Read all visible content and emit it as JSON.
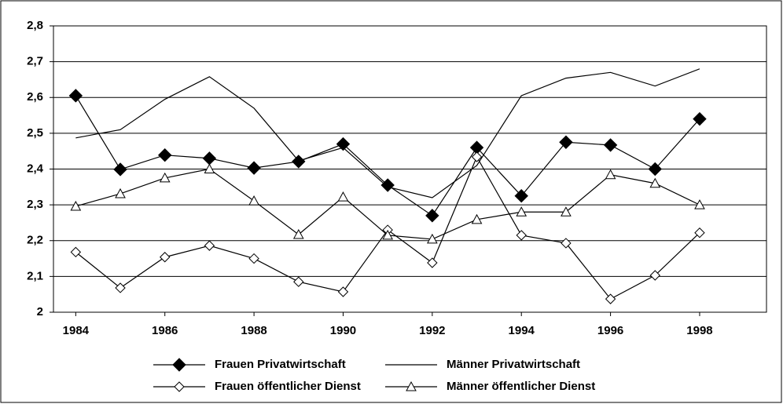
{
  "chart_data": {
    "type": "line",
    "x": [
      1984,
      1985,
      1986,
      1987,
      1988,
      1989,
      1990,
      1991,
      1992,
      1993,
      1994,
      1995,
      1996,
      1997,
      1998
    ],
    "xlim": [
      1983.5,
      1999.5
    ],
    "xticks": [
      1984,
      1986,
      1988,
      1990,
      1992,
      1994,
      1996,
      1998
    ],
    "ylim": [
      2,
      2.8
    ],
    "yticks": [
      2,
      {
        "value": 2.1,
        "label": "2,1"
      },
      {
        "value": 2.2,
        "label": "2,2"
      },
      {
        "value": 2.3,
        "label": "2,3"
      },
      {
        "value": 2.4,
        "label": "2,4"
      },
      {
        "value": 2.5,
        "label": "2,5"
      },
      {
        "value": 2.6,
        "label": "2,6"
      },
      {
        "value": 2.7,
        "label": "2,7"
      },
      {
        "value": 2.8,
        "label": "2,8"
      }
    ],
    "grid": true,
    "legend": "bottom",
    "series": [
      {
        "name": "Frauen Privatwirtschaft",
        "color": "#000000",
        "marker": "diamond-filled",
        "values": [
          2.605,
          2.399,
          2.439,
          2.43,
          2.403,
          2.421,
          2.47,
          2.355,
          2.27,
          2.46,
          2.325,
          2.475,
          2.467,
          2.4,
          2.54
        ]
      },
      {
        "name": "Männer Privatwirtschaft",
        "color": "#000000",
        "marker": "none",
        "values": [
          2.487,
          2.51,
          2.595,
          2.658,
          2.57,
          2.423,
          2.46,
          2.35,
          2.32,
          2.41,
          2.605,
          2.654,
          2.67,
          2.632,
          2.68
        ]
      },
      {
        "name": "Frauen öffentlicher Dienst",
        "color": "#000000",
        "marker": "diamond-open",
        "values": [
          2.168,
          2.068,
          2.154,
          2.186,
          2.15,
          2.085,
          2.057,
          2.23,
          2.138,
          2.434,
          2.215,
          2.193,
          2.037,
          2.103,
          2.222
        ]
      },
      {
        "name": "Männer öffentlicher Dienst",
        "color": "#000000",
        "marker": "triangle-open",
        "values": [
          2.296,
          2.331,
          2.375,
          2.4,
          2.311,
          2.217,
          2.322,
          2.215,
          2.204,
          2.259,
          2.28,
          2.28,
          2.384,
          2.36,
          2.3
        ]
      }
    ]
  }
}
